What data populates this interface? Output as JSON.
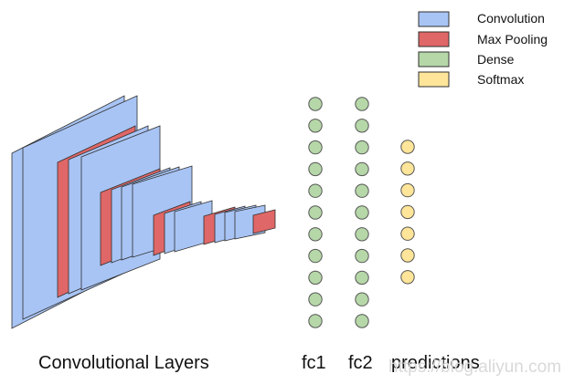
{
  "colors": {
    "convolution": "#a8c4f4",
    "max_pooling": "#e06767",
    "dense": "#b6d7a8",
    "softmax": "#ffe599",
    "outline": "#2f2f2f"
  },
  "legend": [
    {
      "label": "Convolution",
      "color_key": "convolution"
    },
    {
      "label": "Max Pooling",
      "color_key": "max_pooling"
    },
    {
      "label": "Dense",
      "color_key": "dense"
    },
    {
      "label": "Softmax",
      "color_key": "softmax"
    }
  ],
  "captions": {
    "conv_layers": "Convolutional Layers",
    "fc1": "fc1",
    "fc2": "fc2",
    "predictions": "predictions"
  },
  "watermark": "https://blog.aliyun.com",
  "layers": {
    "fc1_nodes": 11,
    "fc2_nodes": 11,
    "prediction_nodes": 7
  }
}
